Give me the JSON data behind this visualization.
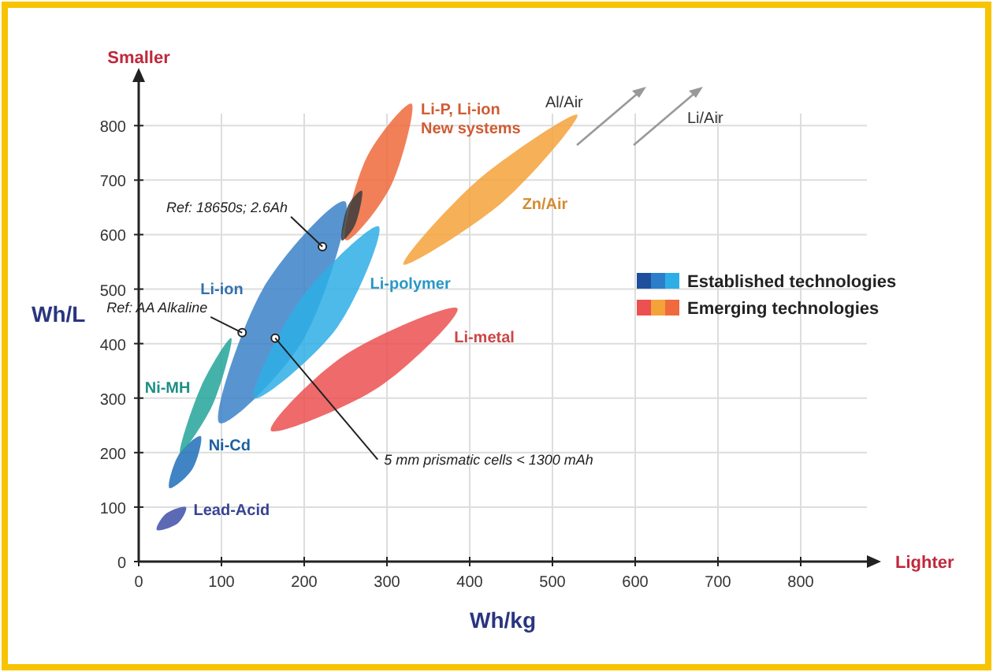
{
  "chart_data": {
    "type": "area",
    "xlabel": "Wh/kg",
    "ylabel": "Wh/L",
    "xlim": [
      0,
      880
    ],
    "ylim": [
      0,
      880
    ],
    "xticks": [
      0,
      100,
      200,
      300,
      400,
      500,
      600,
      700,
      800
    ],
    "yticks": [
      0,
      100,
      200,
      300,
      400,
      500,
      600,
      700,
      800
    ],
    "grid": true,
    "series": [
      {
        "name": "Lead-Acid",
        "color": "#3f4fa8",
        "x": [
          22,
          33,
          57,
          47
        ],
        "values": [
          58,
          88,
          100,
          70
        ]
      },
      {
        "name": "Ni-Cd",
        "color": "#1f6fb8",
        "x": [
          37,
          48,
          75,
          65
        ],
        "values": [
          135,
          195,
          230,
          170
        ]
      },
      {
        "name": "Ni-MH",
        "color": "#23a59a",
        "x": [
          50,
          75,
          112,
          90
        ],
        "values": [
          200,
          320,
          410,
          290
        ]
      },
      {
        "name": "Li-ion",
        "color": "#3b82c8",
        "x": [
          97,
          150,
          250,
          200
        ],
        "values": [
          255,
          500,
          660,
          410
        ]
      },
      {
        "name": "Li-polymer",
        "color": "#2eaee6",
        "x": [
          140,
          195,
          290,
          240
        ],
        "values": [
          300,
          480,
          615,
          430
        ]
      },
      {
        "name": "Li-P, Li-ion New systems",
        "color": "#ef6a3c",
        "x": [
          250,
          275,
          330,
          305
        ],
        "values": [
          590,
          740,
          840,
          690
        ]
      },
      {
        "color": "#3c3c3c",
        "x": [
          245,
          252,
          270,
          262
        ],
        "values": [
          590,
          650,
          680,
          620
        ]
      },
      {
        "name": "Zn/Air",
        "color": "#f4a23a",
        "x": [
          320,
          410,
          530,
          440
        ],
        "values": [
          545,
          700,
          820,
          660
        ]
      },
      {
        "name": "Li-metal",
        "color": "#ec5050",
        "x": [
          160,
          250,
          385,
          290
        ],
        "values": [
          240,
          380,
          465,
          320
        ]
      }
    ],
    "annotations": [
      {
        "text": "Ref: 18650s; 2.6Ah",
        "x": 222,
        "y": 578
      },
      {
        "text": "Ref: AA Alkaline",
        "x": 125,
        "y": 420
      },
      {
        "text": "5 mm prismatic cells < 1300 mAh",
        "x": 165,
        "y": 410
      },
      "Smaller",
      "Lighter",
      "Established technologies",
      "Emerging technologies",
      "Al/Air",
      "Li/Air"
    ]
  }
}
